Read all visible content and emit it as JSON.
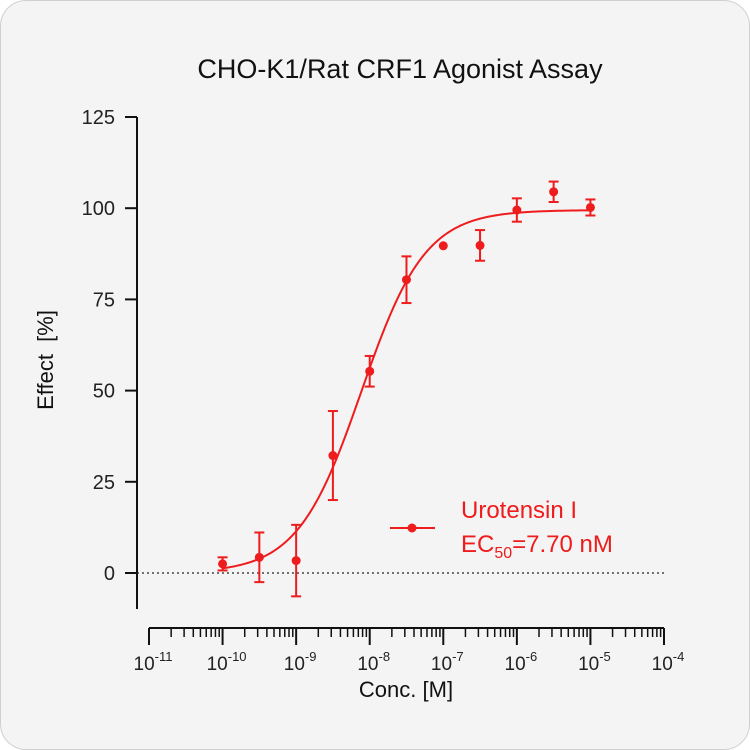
{
  "chart_data": {
    "type": "scatter",
    "title": "CHO-K1/Rat CRF1 Agonist Assay",
    "xlabel": "Conc. [M]",
    "ylabel": "Effect  [%]",
    "x_scale": "log10",
    "xlim": [
      1e-11,
      0.0001
    ],
    "ylim": [
      -10,
      125
    ],
    "y_ticks": [
      0,
      25,
      50,
      75,
      100,
      125
    ],
    "x_ticks": [
      {
        "base": "10",
        "exp": "-11"
      },
      {
        "base": "10",
        "exp": "-10"
      },
      {
        "base": "10",
        "exp": "-9"
      },
      {
        "base": "10",
        "exp": "-8"
      },
      {
        "base": "10",
        "exp": "-7"
      },
      {
        "base": "10",
        "exp": "-6"
      },
      {
        "base": "10",
        "exp": "-5"
      },
      {
        "base": "10",
        "exp": "-4"
      }
    ],
    "grid": false,
    "legend_position": "right",
    "zero_line": true,
    "series": [
      {
        "name": "Urotensin I",
        "color": "#ee1c1c",
        "points": [
          {
            "x": 1e-10,
            "y": 2.5,
            "err": 1.8
          },
          {
            "x": 3.16e-10,
            "y": 4.3,
            "err": 6.8
          },
          {
            "x": 1e-09,
            "y": 3.4,
            "err": 9.8
          },
          {
            "x": 3.16e-09,
            "y": 32.2,
            "err": 12.2
          },
          {
            "x": 1e-08,
            "y": 55.3,
            "err": 4.2
          },
          {
            "x": 3.16e-08,
            "y": 80.4,
            "err": 6.4
          },
          {
            "x": 1e-07,
            "y": 89.7,
            "err": 0.0
          },
          {
            "x": 3.16e-07,
            "y": 89.8,
            "err": 4.2
          },
          {
            "x": 1e-06,
            "y": 99.5,
            "err": 3.2
          },
          {
            "x": 3.16e-06,
            "y": 104.5,
            "err": 2.8
          },
          {
            "x": 1e-05,
            "y": 100.2,
            "err": 2.2
          }
        ],
        "fit": {
          "model": "4PL",
          "bottom": 0,
          "top": 99.5,
          "ec50_M": 7.7e-09,
          "hill": 1.0,
          "x_from": 1e-10,
          "x_to": 1e-05
        }
      }
    ],
    "annotation": {
      "ec50_prefix": "EC",
      "ec50_sub": "50",
      "ec50_value": "=7.70 nM"
    }
  }
}
